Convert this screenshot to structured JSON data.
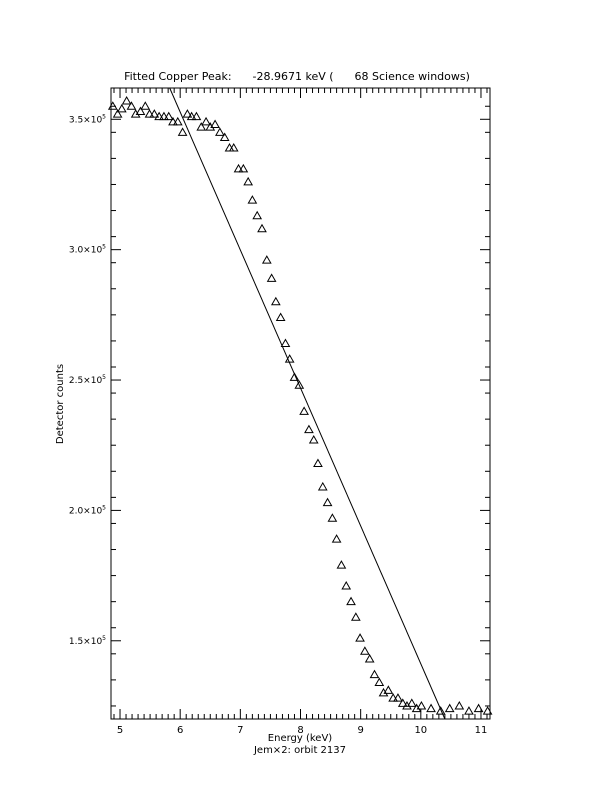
{
  "chart_data": {
    "type": "scatter",
    "title": "Fitted Copper Peak:      -28.9671 keV (      68 Science windows)",
    "xlabel": "Energy (keV)",
    "ylabel": "Detector counts",
    "subtitle": "Jem×2: orbit 2137",
    "xlim": [
      4.85,
      11.15
    ],
    "ylim": [
      120000,
      362000
    ],
    "x_ticks": [
      {
        "value": 5,
        "label": "5"
      },
      {
        "value": 6,
        "label": "6"
      },
      {
        "value": 7,
        "label": "7"
      },
      {
        "value": 8,
        "label": "8"
      },
      {
        "value": 9,
        "label": "9"
      },
      {
        "value": 10,
        "label": "10"
      },
      {
        "value": 11,
        "label": "11"
      }
    ],
    "y_ticks": [
      {
        "value": 150000,
        "mantissa": "1.5×10",
        "exp": "5"
      },
      {
        "value": 200000,
        "mantissa": "2.0×10",
        "exp": "5"
      },
      {
        "value": 250000,
        "mantissa": "2.5×10",
        "exp": "5"
      },
      {
        "value": 300000,
        "mantissa": "3.0×10",
        "exp": "5"
      },
      {
        "value": 350000,
        "mantissa": "3.5×10",
        "exp": "5"
      }
    ],
    "series": [
      {
        "marker": "triangle",
        "x": [
          4.88,
          4.96,
          5.03,
          5.11,
          5.19,
          5.26,
          5.34,
          5.42,
          5.49,
          5.57,
          5.65,
          5.73,
          5.81,
          5.88,
          5.96,
          6.04,
          6.12,
          6.19,
          6.27,
          6.35,
          6.43,
          6.5,
          6.58,
          6.66,
          6.74,
          6.82,
          6.89,
          6.97,
          7.05,
          7.13,
          7.2,
          7.28,
          7.36,
          7.44,
          7.52,
          7.59,
          7.67,
          7.75,
          7.82,
          7.9,
          7.98,
          8.06,
          8.14,
          8.22,
          8.29,
          8.37,
          8.45,
          8.53,
          8.6,
          8.68,
          8.76,
          8.84,
          8.92,
          8.99,
          9.07,
          9.15,
          9.23,
          9.31,
          9.38,
          9.46,
          9.54,
          9.62,
          9.7,
          9.77,
          9.85,
          9.93,
          10.01,
          10.17,
          10.33,
          10.48,
          10.64,
          10.8,
          10.96,
          11.11
        ],
        "y": [
          355000,
          352000,
          354000,
          357000,
          355000,
          352000,
          353000,
          355000,
          352000,
          352000,
          351000,
          351000,
          351000,
          349000,
          349000,
          345000,
          352000,
          351000,
          351000,
          347000,
          349000,
          347000,
          348000,
          345000,
          343000,
          339000,
          339000,
          331000,
          331000,
          326000,
          319000,
          313000,
          308000,
          296000,
          289000,
          280000,
          274000,
          264000,
          258000,
          251000,
          248000,
          238000,
          231000,
          227000,
          218000,
          209000,
          203000,
          197000,
          189000,
          179000,
          171000,
          165000,
          159000,
          151000,
          146000,
          143000,
          137000,
          134000,
          130000,
          131000,
          128000,
          128000,
          126000,
          125000,
          126000,
          124000,
          125000,
          124000,
          123000,
          124000,
          125000,
          123000,
          124000,
          123000
        ],
        "note_visible_only": true
      },
      {
        "marker": "line",
        "x": [
          5.75,
          10.4
        ],
        "y": [
          366000,
          120000
        ]
      }
    ]
  }
}
